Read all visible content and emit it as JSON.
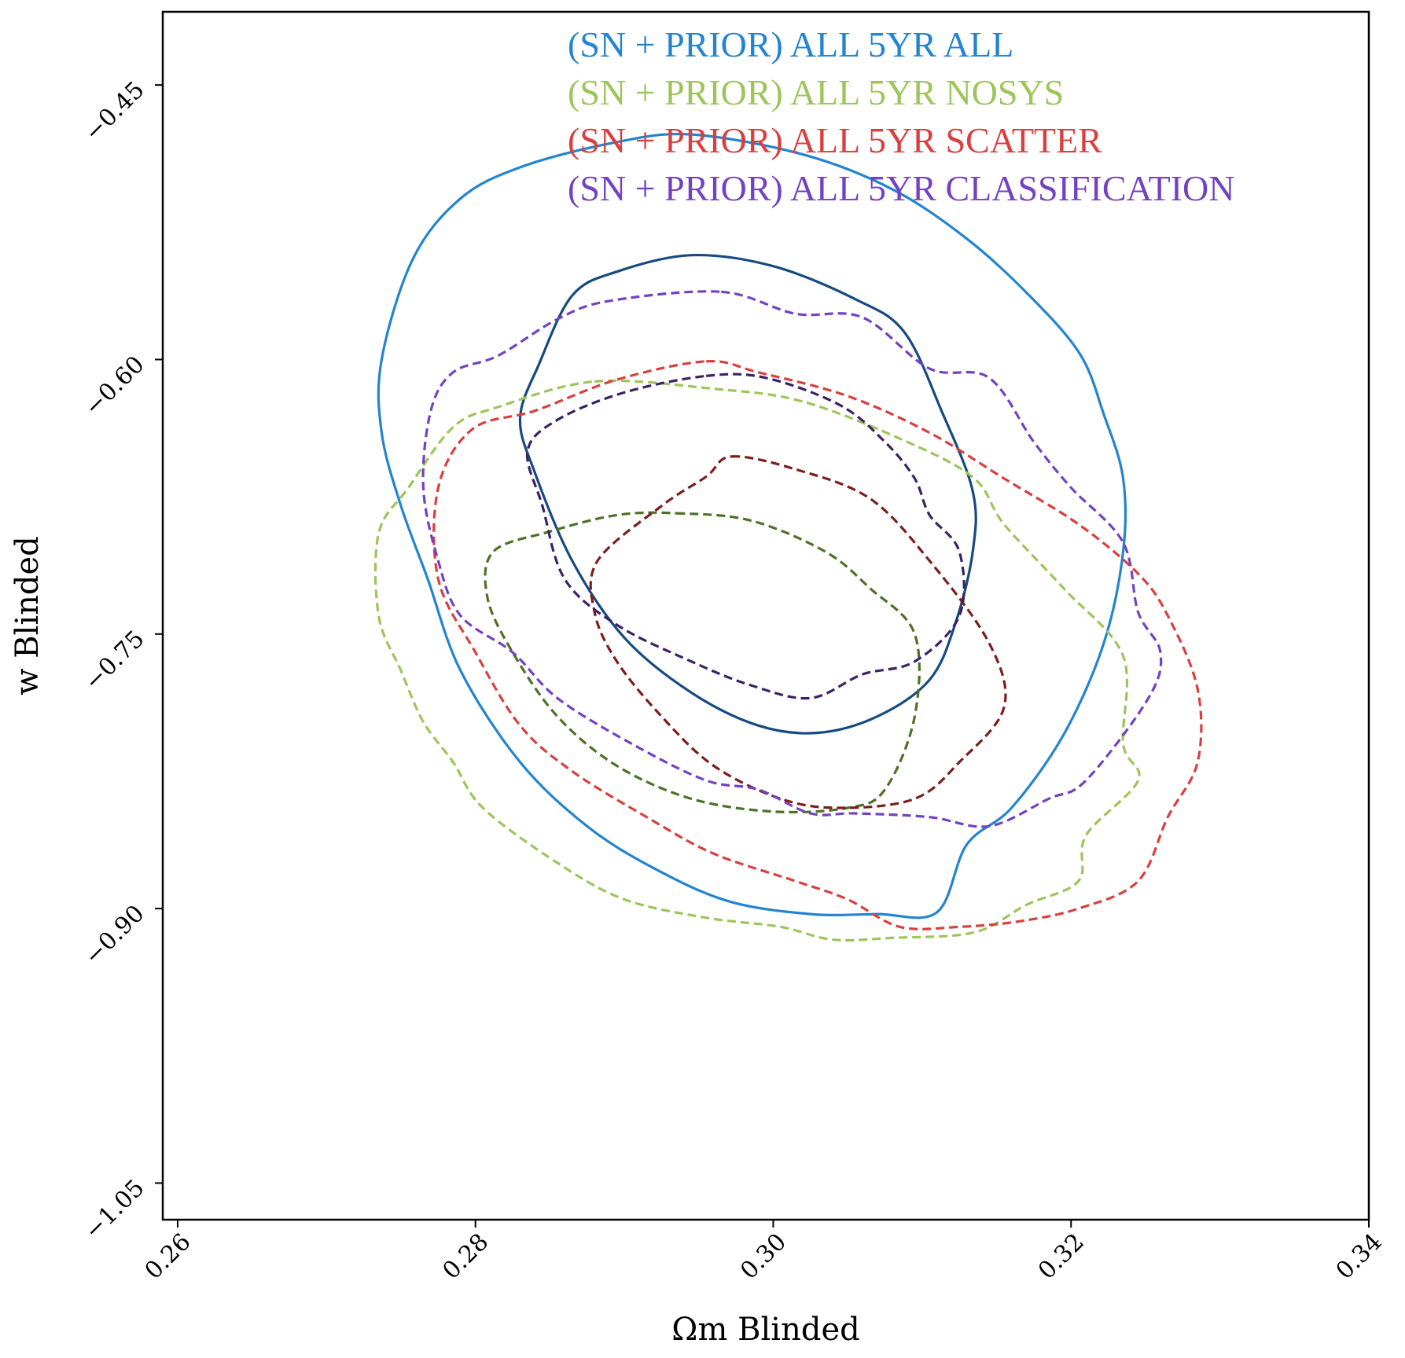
{
  "chart_data": {
    "type": "contour",
    "xlabel": "Ωm Blinded",
    "ylabel": "w Blinded",
    "xlim": [
      0.259,
      0.34
    ],
    "ylim": [
      -1.07,
      -0.41
    ],
    "xticks": [
      {
        "value": 0.26,
        "label": "0.26"
      },
      {
        "value": 0.28,
        "label": "0.28"
      },
      {
        "value": 0.3,
        "label": "0.30"
      },
      {
        "value": 0.32,
        "label": "0.32"
      },
      {
        "value": 0.34,
        "label": "0.34"
      }
    ],
    "yticks": [
      {
        "value": -0.45,
        "label": "−0.45"
      },
      {
        "value": -0.6,
        "label": "−0.60"
      },
      {
        "value": -0.75,
        "label": "−0.75"
      },
      {
        "value": -0.9,
        "label": "−0.90"
      },
      {
        "value": -1.05,
        "label": "−1.05"
      }
    ],
    "legend_position": "top-right",
    "grid": false,
    "series": [
      {
        "name": "(SN + PRIOR) ALL 5YR ALL",
        "color": "#2384cf",
        "inner_color": "#174a80",
        "linestyle": "solid",
        "contours": [
          {
            "level": "95%",
            "points": [
              [
                0.2944,
                -0.477
              ],
              [
                0.302,
                -0.488
              ],
              [
                0.308,
                -0.507
              ],
              [
                0.313,
                -0.534
              ],
              [
                0.3172,
                -0.565
              ],
              [
                0.3206,
                -0.597
              ],
              [
                0.3222,
                -0.63
              ],
              [
                0.3235,
                -0.665
              ],
              [
                0.3235,
                -0.705
              ],
              [
                0.3222,
                -0.755
              ],
              [
                0.3195,
                -0.805
              ],
              [
                0.316,
                -0.845
              ],
              [
                0.313,
                -0.865
              ],
              [
                0.311,
                -0.902
              ],
              [
                0.307,
                -0.903
              ],
              [
                0.3025,
                -0.903
              ],
              [
                0.297,
                -0.896
              ],
              [
                0.292,
                -0.878
              ],
              [
                0.2875,
                -0.855
              ],
              [
                0.283,
                -0.82
              ],
              [
                0.279,
                -0.77
              ],
              [
                0.2768,
                -0.72
              ],
              [
                0.275,
                -0.68
              ],
              [
                0.2737,
                -0.64
              ],
              [
                0.2737,
                -0.6
              ],
              [
                0.2758,
                -0.545
              ],
              [
                0.279,
                -0.512
              ],
              [
                0.283,
                -0.495
              ],
              [
                0.289,
                -0.482
              ]
            ]
          },
          {
            "level": "68%",
            "points": [
              [
                0.2945,
                -0.543
              ],
              [
                0.3,
                -0.549
              ],
              [
                0.3055,
                -0.567
              ],
              [
                0.3088,
                -0.585
              ],
              [
                0.3113,
                -0.628
              ],
              [
                0.3134,
                -0.672
              ],
              [
                0.3134,
                -0.705
              ],
              [
                0.3122,
                -0.745
              ],
              [
                0.3105,
                -0.775
              ],
              [
                0.307,
                -0.795
              ],
              [
                0.303,
                -0.804
              ],
              [
                0.299,
                -0.8
              ],
              [
                0.2945,
                -0.782
              ],
              [
                0.29,
                -0.752
              ],
              [
                0.2865,
                -0.71
              ],
              [
                0.284,
                -0.662
              ],
              [
                0.283,
                -0.632
              ],
              [
                0.2843,
                -0.602
              ],
              [
                0.2865,
                -0.565
              ],
              [
                0.2895,
                -0.552
              ]
            ]
          }
        ]
      },
      {
        "name": "(SN + PRIOR) ALL 5YR NOSYS",
        "color": "#9dc55a",
        "inner_color": "#4d7126",
        "linestyle": "dashed",
        "contours": [
          {
            "level": "95%",
            "points": [
              [
                0.288,
                -0.612
              ],
              [
                0.296,
                -0.616
              ],
              [
                0.302,
                -0.623
              ],
              [
                0.309,
                -0.645
              ],
              [
                0.3135,
                -0.665
              ],
              [
                0.3155,
                -0.69
              ],
              [
                0.3195,
                -0.725
              ],
              [
                0.3235,
                -0.762
              ],
              [
                0.3235,
                -0.81
              ],
              [
                0.3245,
                -0.83
              ],
              [
                0.321,
                -0.86
              ],
              [
                0.3205,
                -0.885
              ],
              [
                0.317,
                -0.898
              ],
              [
                0.3135,
                -0.913
              ],
              [
                0.308,
                -0.916
              ],
              [
                0.304,
                -0.917
              ],
              [
                0.3005,
                -0.91
              ],
              [
                0.2955,
                -0.905
              ],
              [
                0.29,
                -0.895
              ],
              [
                0.2855,
                -0.875
              ],
              [
                0.2805,
                -0.845
              ],
              [
                0.2785,
                -0.82
              ],
              [
                0.2765,
                -0.798
              ],
              [
                0.275,
                -0.77
              ],
              [
                0.2735,
                -0.74
              ],
              [
                0.2735,
                -0.695
              ],
              [
                0.2755,
                -0.67
              ],
              [
                0.2785,
                -0.637
              ],
              [
                0.2815,
                -0.626
              ]
            ]
          },
          {
            "level": "68%",
            "points": [
              [
                0.2935,
                -0.684
              ],
              [
                0.2985,
                -0.688
              ],
              [
                0.3035,
                -0.705
              ],
              [
                0.3065,
                -0.725
              ],
              [
                0.3095,
                -0.75
              ],
              [
                0.3095,
                -0.795
              ],
              [
                0.3075,
                -0.835
              ],
              [
                0.305,
                -0.845
              ],
              [
                0.3,
                -0.847
              ],
              [
                0.2945,
                -0.84
              ],
              [
                0.2895,
                -0.822
              ],
              [
                0.2855,
                -0.795
              ],
              [
                0.2825,
                -0.76
              ],
              [
                0.2808,
                -0.73
              ],
              [
                0.2812,
                -0.705
              ],
              [
                0.285,
                -0.694
              ],
              [
                0.2895,
                -0.685
              ]
            ]
          }
        ]
      },
      {
        "name": "(SN + PRIOR) ALL 5YR SCATTER",
        "color": "#d93f3f",
        "inner_color": "#7d1d1d",
        "linestyle": "dashed",
        "contours": [
          {
            "level": "95%",
            "points": [
              [
                0.2955,
                -0.601
              ],
              [
                0.299,
                -0.607
              ],
              [
                0.305,
                -0.62
              ],
              [
                0.3105,
                -0.64
              ],
              [
                0.3155,
                -0.665
              ],
              [
                0.3205,
                -0.69
              ],
              [
                0.3245,
                -0.717
              ],
              [
                0.3265,
                -0.74
              ],
              [
                0.3285,
                -0.78
              ],
              [
                0.3285,
                -0.82
              ],
              [
                0.3265,
                -0.85
              ],
              [
                0.3245,
                -0.885
              ],
              [
                0.3205,
                -0.9
              ],
              [
                0.3165,
                -0.907
              ],
              [
                0.3125,
                -0.91
              ],
              [
                0.3085,
                -0.91
              ],
              [
                0.305,
                -0.895
              ],
              [
                0.3015,
                -0.885
              ],
              [
                0.296,
                -0.87
              ],
              [
                0.2915,
                -0.85
              ],
              [
                0.2865,
                -0.825
              ],
              [
                0.283,
                -0.8
              ],
              [
                0.28,
                -0.76
              ],
              [
                0.2775,
                -0.72
              ],
              [
                0.2775,
                -0.67
              ],
              [
                0.2798,
                -0.638
              ],
              [
                0.284,
                -0.628
              ],
              [
                0.2895,
                -0.611
              ]
            ]
          },
          {
            "level": "68%",
            "points": [
              [
                0.2972,
                -0.653
              ],
              [
                0.3015,
                -0.66
              ],
              [
                0.3065,
                -0.676
              ],
              [
                0.3105,
                -0.71
              ],
              [
                0.3145,
                -0.755
              ],
              [
                0.3155,
                -0.79
              ],
              [
                0.3125,
                -0.82
              ],
              [
                0.3095,
                -0.84
              ],
              [
                0.3045,
                -0.845
              ],
              [
                0.3005,
                -0.84
              ],
              [
                0.296,
                -0.822
              ],
              [
                0.2925,
                -0.795
              ],
              [
                0.2895,
                -0.765
              ],
              [
                0.288,
                -0.738
              ],
              [
                0.2882,
                -0.71
              ],
              [
                0.2925,
                -0.68
              ],
              [
                0.2955,
                -0.664
              ]
            ]
          }
        ]
      },
      {
        "name": "(SN + PRIOR) ALL 5YR CLASSIFICATION",
        "color": "#7242c2",
        "inner_color": "#3a2266",
        "linestyle": "dashed",
        "contours": [
          {
            "level": "95%",
            "points": [
              [
                0.2965,
                -0.563
              ],
              [
                0.3015,
                -0.575
              ],
              [
                0.306,
                -0.577
              ],
              [
                0.3105,
                -0.605
              ],
              [
                0.3145,
                -0.61
              ],
              [
                0.3175,
                -0.645
              ],
              [
                0.32,
                -0.67
              ],
              [
                0.3235,
                -0.7
              ],
              [
                0.3245,
                -0.738
              ],
              [
                0.326,
                -0.76
              ],
              [
                0.3252,
                -0.785
              ],
              [
                0.321,
                -0.83
              ],
              [
                0.3185,
                -0.84
              ],
              [
                0.3145,
                -0.855
              ],
              [
                0.3105,
                -0.85
              ],
              [
                0.3055,
                -0.848
              ],
              [
                0.3025,
                -0.848
              ],
              [
                0.299,
                -0.835
              ],
              [
                0.2955,
                -0.83
              ],
              [
                0.2905,
                -0.81
              ],
              [
                0.2855,
                -0.785
              ],
              [
                0.2825,
                -0.76
              ],
              [
                0.279,
                -0.74
              ],
              [
                0.2775,
                -0.71
              ],
              [
                0.2765,
                -0.67
              ],
              [
                0.277,
                -0.628
              ],
              [
                0.2785,
                -0.607
              ],
              [
                0.2815,
                -0.598
              ],
              [
                0.2855,
                -0.578
              ],
              [
                0.289,
                -0.568
              ]
            ]
          },
          {
            "level": "68%",
            "points": [
              [
                0.2955,
                -0.609
              ],
              [
                0.2995,
                -0.61
              ],
              [
                0.3045,
                -0.625
              ],
              [
                0.3075,
                -0.645
              ],
              [
                0.3095,
                -0.665
              ],
              [
                0.3105,
                -0.685
              ],
              [
                0.3125,
                -0.705
              ],
              [
                0.3125,
                -0.74
              ],
              [
                0.3095,
                -0.765
              ],
              [
                0.306,
                -0.772
              ],
              [
                0.3025,
                -0.785
              ],
              [
                0.2985,
                -0.778
              ],
              [
                0.2945,
                -0.765
              ],
              [
                0.2895,
                -0.745
              ],
              [
                0.286,
                -0.72
              ],
              [
                0.2845,
                -0.68
              ],
              [
                0.2835,
                -0.65
              ],
              [
                0.2855,
                -0.633
              ],
              [
                0.29,
                -0.618
              ]
            ]
          }
        ]
      }
    ]
  }
}
